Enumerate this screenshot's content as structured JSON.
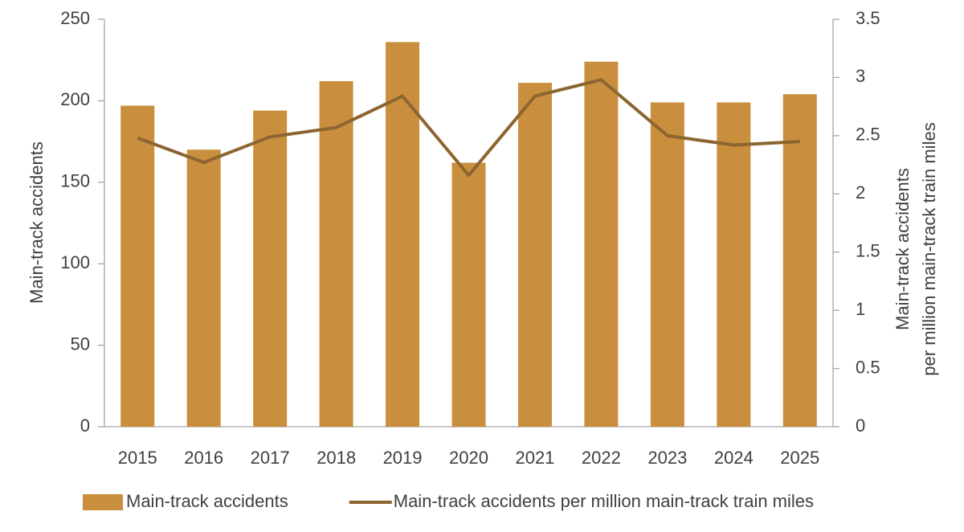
{
  "chart_data": {
    "type": "bar-line",
    "categories": [
      "2015",
      "2016",
      "2017",
      "2018",
      "2019",
      "2020",
      "2021",
      "2022",
      "2023",
      "2024",
      "2025"
    ],
    "series": [
      {
        "name": "Main-track accidents",
        "type": "bar",
        "color": "#c98f3e",
        "values": [
          197,
          170,
          194,
          212,
          236,
          162,
          211,
          224,
          199,
          199,
          204
        ]
      },
      {
        "name": "Main-track accidents per million main-track train miles",
        "type": "line",
        "axis": "y2",
        "color": "#8c6530",
        "values": [
          2.48,
          2.27,
          2.49,
          2.57,
          2.84,
          2.16,
          2.84,
          2.98,
          2.5,
          2.42,
          2.45
        ]
      }
    ],
    "ylabel": "Main-track accidents",
    "y2label": [
      "Main-track accidents",
      "per million main-track train miles"
    ],
    "ylim": [
      0,
      250
    ],
    "yticks": [
      0,
      50,
      100,
      150,
      200,
      250
    ],
    "y2lim": [
      0,
      3.5
    ],
    "y2ticks": [
      0,
      0.5,
      1,
      1.5,
      2,
      2.5,
      3,
      3.5
    ],
    "grid": false,
    "legend": "bottom"
  }
}
